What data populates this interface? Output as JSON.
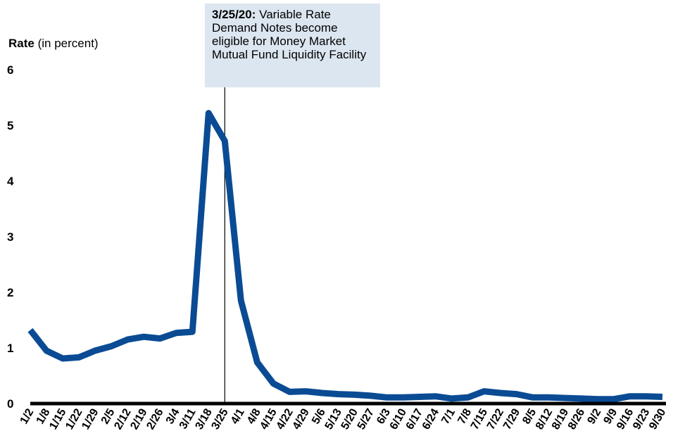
{
  "chart_data": {
    "type": "line",
    "ylabel_bold": "Rate",
    "ylabel_rest": "(in percent)",
    "ylim": [
      0,
      6
    ],
    "yticks": [
      0,
      1,
      2,
      3,
      4,
      5,
      6
    ],
    "grid": false,
    "line_color": "#0a4b94",
    "annotation": {
      "x": "3/25",
      "date_bold": "3/25/20:",
      "text": "Variable Rate Demand Notes become eligible for Money Market Mutual Fund Liquidity Facility",
      "background": "#dce6f0"
    },
    "categories": [
      "1/2",
      "1/8",
      "1/15",
      "1/22",
      "1/29",
      "2/5",
      "2/12",
      "2/19",
      "2/26",
      "3/4",
      "3/11",
      "3/18",
      "3/25",
      "4/1",
      "4/8",
      "4/15",
      "4/22",
      "4/29",
      "5/6",
      "5/13",
      "5/20",
      "5/27",
      "6/3",
      "6/10",
      "6/17",
      "6/24",
      "7/1",
      "7/8",
      "7/15",
      "7/22",
      "7/29",
      "8/5",
      "8/12",
      "8/19",
      "8/26",
      "9/2",
      "9/9",
      "9/16",
      "9/23",
      "9/30"
    ],
    "values": [
      1.32,
      0.95,
      0.81,
      0.83,
      0.95,
      1.03,
      1.15,
      1.2,
      1.17,
      1.27,
      1.29,
      5.22,
      4.72,
      1.85,
      0.74,
      0.36,
      0.21,
      0.22,
      0.19,
      0.17,
      0.16,
      0.14,
      0.11,
      0.11,
      0.12,
      0.13,
      0.09,
      0.11,
      0.22,
      0.19,
      0.17,
      0.11,
      0.11,
      0.1,
      0.09,
      0.08,
      0.08,
      0.13,
      0.13,
      0.12
    ]
  }
}
